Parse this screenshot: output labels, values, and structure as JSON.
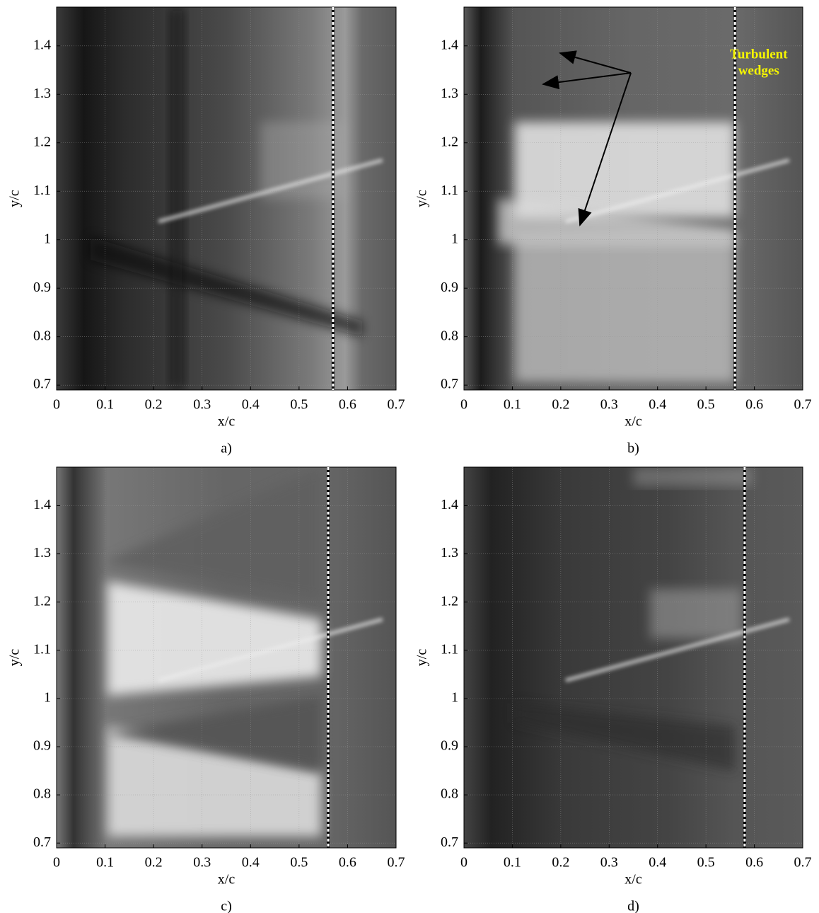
{
  "chart_data": [
    {
      "type": "image",
      "label": "a)",
      "xlabel": "x/c",
      "ylabel": "y/c",
      "xlim": [
        0,
        0.7
      ],
      "ylim": [
        0.69,
        1.48
      ],
      "xticks": [
        0,
        0.1,
        0.2,
        0.3,
        0.4,
        0.5,
        0.6,
        0.7
      ],
      "yticks": [
        0.7,
        0.8,
        0.9,
        1,
        1.1,
        1.2,
        1.3,
        1.4
      ],
      "grid": true,
      "transition_x": 0.57
    },
    {
      "type": "image",
      "label": "b)",
      "xlabel": "x/c",
      "ylabel": "y/c",
      "xlim": [
        0,
        0.7
      ],
      "ylim": [
        0.69,
        1.48
      ],
      "xticks": [
        0,
        0.1,
        0.2,
        0.3,
        0.4,
        0.5,
        0.6,
        0.7
      ],
      "yticks": [
        0.7,
        0.8,
        0.9,
        1,
        1.1,
        1.2,
        1.3,
        1.4
      ],
      "grid": true,
      "transition_x": 0.56,
      "annotation": [
        "Turbulent",
        "wedges"
      ]
    },
    {
      "type": "image",
      "label": "c)",
      "xlabel": "x/c",
      "ylabel": "y/c",
      "xlim": [
        0,
        0.7
      ],
      "ylim": [
        0.69,
        1.48
      ],
      "xticks": [
        0,
        0.1,
        0.2,
        0.3,
        0.4,
        0.5,
        0.6,
        0.7
      ],
      "yticks": [
        0.7,
        0.8,
        0.9,
        1,
        1.1,
        1.2,
        1.3,
        1.4
      ],
      "grid": true,
      "transition_x": 0.56
    },
    {
      "type": "image",
      "label": "d)",
      "xlabel": "x/c",
      "ylabel": "y/c",
      "xlim": [
        0,
        0.7
      ],
      "ylim": [
        0.69,
        1.48
      ],
      "xticks": [
        0,
        0.1,
        0.2,
        0.3,
        0.4,
        0.5,
        0.6,
        0.7
      ],
      "yticks": [
        0.7,
        0.8,
        0.9,
        1,
        1.1,
        1.2,
        1.3,
        1.4
      ],
      "grid": true,
      "transition_x": 0.58
    }
  ]
}
